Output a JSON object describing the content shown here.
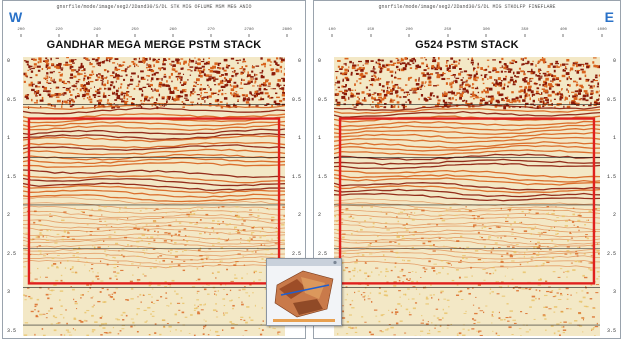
{
  "left_panel": {
    "filepath": "gnsrfile/mode/image/seg2/2Dand30/S/DL STK MIG OFLUME MSM MEG ANIO",
    "direction": "W",
    "title": "GANDHAR MEGA MERGE PSTM STACK",
    "trace_ticks": [
      "200",
      "220",
      "240",
      "250",
      "260",
      "270",
      "2780",
      "2800"
    ],
    "time_labels_left": [
      "0",
      "0.5",
      "1",
      "1.5",
      "2",
      "2.5",
      "3",
      "3.5"
    ],
    "time_labels_right": [
      "0",
      "0.5",
      "1",
      "1.5",
      "2",
      "2.5",
      "3"
    ]
  },
  "right_panel": {
    "filepath": "gnsrfile/mode/image/seg2/2Dand30/S/DL MIG STKOLFP FINEFLARE",
    "direction": "E",
    "title": "G524 PSTM STACK",
    "trace_ticks": [
      "100",
      "150",
      "200",
      "250",
      "300",
      "350",
      "400",
      "1000"
    ],
    "time_labels_left": [
      "0",
      "0.5",
      "1",
      "1.5",
      "2",
      "2.5",
      "3"
    ],
    "time_labels_right": [
      "0",
      "0.5",
      "1",
      "1.5",
      "2",
      "2.5",
      "3",
      "3.5"
    ]
  },
  "colors": {
    "highlight_box": "#e0201e",
    "direction_label": "#2a72c8",
    "seismic_strong": "#8a1a08",
    "seismic_mid": "#d8621c",
    "seismic_weak": "#e8c064",
    "seismic_bg": "#f3e8c6"
  },
  "inset": {
    "icon": "3d-survey-map-icon"
  }
}
